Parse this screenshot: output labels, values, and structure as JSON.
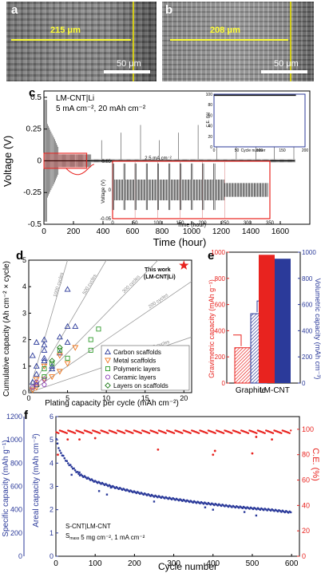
{
  "panel_labels": {
    "a": "a",
    "b": "b",
    "c": "c",
    "d": "d",
    "e": "e",
    "f": "f"
  },
  "sem": {
    "a": {
      "dimension": "215 μm",
      "scale": "50 μm"
    },
    "b": {
      "dimension": "208 μm",
      "scale": "50 μm"
    }
  },
  "colors": {
    "red": "#e8231f",
    "blue": "#2b3a9a",
    "green": "#2e9a2a",
    "orange": "#f07820",
    "purple": "#8a3ab8",
    "yellow": "#ffff33"
  },
  "chart_data": [
    {
      "id": "c",
      "type": "line",
      "annotation_lines": [
        "LM-CNT|Li",
        "5 mA cm⁻², 20 mAh cm⁻²"
      ],
      "xlabel": "Time (hour)",
      "ylabel": "Voltage (V)",
      "xlim": [
        0,
        1800
      ],
      "ylim": [
        -0.5,
        0.55
      ],
      "xticks": [
        0,
        200,
        400,
        600,
        800,
        1000,
        1200,
        1400,
        1600
      ],
      "yticks": [
        -0.5,
        -0.25,
        0,
        0.25,
        0.5
      ],
      "ytick_labels": [
        "-0.5",
        "-0.25",
        "0",
        "0.25",
        "0.5"
      ],
      "inset_ce": {
        "ylabel": "C.E. (%)",
        "xlabel": "Cycle number",
        "ylim": [
          0,
          100
        ],
        "xlim": [
          0,
          200
        ],
        "yticks": [
          0,
          20,
          40,
          60,
          80,
          100
        ],
        "xticks": [
          0,
          50,
          100,
          150,
          200
        ],
        "value": 98
      },
      "inset_zoom": {
        "title": "2.5 mA cm⁻²",
        "ylabel": "Voltage (V)",
        "xlabel": "Time (hour)",
        "xlim": [
          0,
          350
        ],
        "ylim": [
          -0.05,
          0.05
        ],
        "xticks": [
          0,
          50,
          100,
          150,
          200,
          250,
          300,
          350
        ],
        "yticks": [
          -0.05,
          0,
          0.05
        ],
        "ytick_labels": [
          "-0.05",
          "0",
          "0.05"
        ]
      }
    },
    {
      "id": "d",
      "type": "scatter",
      "xlabel": "Plating capacity per cycle (mAh cm⁻²)",
      "ylabel": "Cumulative capacity (Ah cm⁻² × cycle)",
      "xlim": [
        0,
        21
      ],
      "ylim": [
        0,
        5
      ],
      "xticks": [
        0,
        5,
        10,
        15,
        20
      ],
      "yticks": [
        0,
        1,
        2,
        3,
        4,
        5
      ],
      "guide_lines": [
        {
          "label": "1000 cycles",
          "slope": 1.0
        },
        {
          "label": "500 cycles",
          "slope": 0.5
        },
        {
          "label": "300 cycles",
          "slope": 0.3
        },
        {
          "label": "200 cycles",
          "slope": 0.2
        },
        {
          "label": "100 cycles",
          "slope": 0.1
        }
      ],
      "star": {
        "label_line1": "This work",
        "label_line2": "(LM-CNT|Li)",
        "x": 20,
        "y": 4.8
      },
      "series": [
        {
          "name": "Carbon scaffolds",
          "marker": "tri-up",
          "color": "#2b3a9a",
          "points": [
            [
              0.5,
              0.4
            ],
            [
              1,
              0.3
            ],
            [
              1,
              0.7
            ],
            [
              1,
              1.0
            ],
            [
              2,
              1.3
            ],
            [
              2,
              1.8
            ],
            [
              2,
              2.0
            ],
            [
              2,
              1.2
            ],
            [
              3,
              0.9
            ],
            [
              3,
              1.0
            ],
            [
              4,
              1.5
            ],
            [
              4,
              2.1
            ],
            [
              5,
              1.9
            ],
            [
              5,
              2.5
            ],
            [
              5,
              3.9
            ],
            [
              6,
              2.5
            ],
            [
              1,
              1.9
            ],
            [
              2,
              1.6
            ],
            [
              0.5,
              1.4
            ]
          ]
        },
        {
          "name": "Metal scaffolds",
          "marker": "tri-down",
          "color": "#f07820",
          "points": [
            [
              0.5,
              0.1
            ],
            [
              1,
              0.2
            ],
            [
              1,
              0.5
            ],
            [
              2,
              0.5
            ],
            [
              2,
              1.0
            ],
            [
              3,
              0.6
            ],
            [
              4,
              1.4
            ],
            [
              4,
              0.8
            ],
            [
              5,
              1.1
            ],
            [
              6,
              1.7
            ]
          ]
        },
        {
          "name": "Polymeric layers",
          "marker": "square",
          "color": "#2e9a2a",
          "points": [
            [
              1,
              0.3
            ],
            [
              2,
              0.6
            ],
            [
              2,
              0.9
            ],
            [
              3,
              1.1
            ],
            [
              4,
              1.6
            ],
            [
              5,
              1.3
            ],
            [
              8,
              1.6
            ],
            [
              8,
              2.0
            ],
            [
              9,
              2.4
            ]
          ]
        },
        {
          "name": "Ceramic layers",
          "marker": "circle",
          "color": "#8a3ab8",
          "points": [
            [
              0.5,
              0.2
            ],
            [
              1,
              0.3
            ],
            [
              1,
              0.4
            ],
            [
              2,
              0.3
            ],
            [
              2,
              0.5
            ]
          ]
        },
        {
          "name": "Layers on scaffolds",
          "marker": "diamond",
          "color": "#1f7a1a",
          "points": [
            [
              4,
              1.7
            ],
            [
              3,
              1.2
            ]
          ]
        }
      ]
    },
    {
      "id": "e",
      "type": "bar",
      "categories": [
        "Graphite",
        "LM-CNT"
      ],
      "ylabel_left": "Gravimetric capacity (mAh g⁻¹)",
      "ylabel_right": "Volumetric capacity (mAh cm⁻³)",
      "ylim_left": [
        0,
        1000
      ],
      "ylim_right": [
        0,
        1000
      ],
      "yticks_left": [
        0,
        200,
        400,
        600,
        800,
        1000
      ],
      "yticks_right": [
        0,
        200,
        400,
        600,
        800,
        1000
      ],
      "series": [
        {
          "name": "Gravimetric",
          "axis": "left",
          "color": "#e8231f",
          "values": [
            270,
            980
          ]
        },
        {
          "name": "Volumetric",
          "axis": "right",
          "color": "#2b3a9a",
          "values": [
            530,
            950
          ]
        }
      ]
    },
    {
      "id": "f",
      "type": "scatter",
      "annotation_lines": [
        "S-CNT|LM-CNT",
        "S",
        "mass",
        "",
        "5 mg cm⁻², 1 mA cm⁻²"
      ],
      "xlabel": "Cycle number",
      "ylabel_specific": "Specific capacity (mAh g⁻¹)",
      "ylabel_areal": "Areal capacity (mAh cm⁻²)",
      "ylabel_right": "C.E. (%)",
      "xlim": [
        0,
        620
      ],
      "xticks": [
        0,
        100,
        200,
        300,
        400,
        500,
        600
      ],
      "yticks_specific": [
        0,
        200,
        400,
        600,
        800,
        1000,
        1200
      ],
      "yticks_areal": [
        0,
        1,
        2,
        3,
        4,
        5,
        6
      ],
      "yticks_right": [
        0,
        20,
        40,
        60,
        80,
        100
      ],
      "series": [
        {
          "name": "Specific capacity",
          "axis": "left",
          "color": "#2b3a9a",
          "curve": [
            [
              1,
              1000
            ],
            [
              10,
              900
            ],
            [
              30,
              800
            ],
            [
              60,
              700
            ],
            [
              100,
              640
            ],
            [
              150,
              590
            ],
            [
              200,
              550
            ],
            [
              250,
              515
            ],
            [
              300,
              490
            ],
            [
              350,
              465
            ],
            [
              400,
              445
            ],
            [
              450,
              425
            ],
            [
              500,
              410
            ],
            [
              550,
              395
            ],
            [
              600,
              375
            ]
          ],
          "outliers": [
            [
              40,
              700
            ],
            [
              60,
              720
            ],
            [
              110,
              560
            ],
            [
              130,
              530
            ],
            [
              140,
              590
            ],
            [
              250,
              470
            ],
            [
              380,
              420
            ],
            [
              400,
              400
            ],
            [
              480,
              380
            ],
            [
              510,
              350
            ]
          ]
        },
        {
          "name": "C.E.",
          "axis": "right",
          "color": "#e8231f",
          "level": 98,
          "outliers": [
            [
              5,
              80
            ],
            [
              30,
              92
            ],
            [
              60,
              92
            ],
            [
              100,
              93
            ],
            [
              260,
              84
            ],
            [
              400,
              80
            ],
            [
              405,
              83
            ],
            [
              500,
              81
            ],
            [
              510,
              94
            ],
            [
              550,
              92
            ]
          ]
        }
      ]
    }
  ]
}
